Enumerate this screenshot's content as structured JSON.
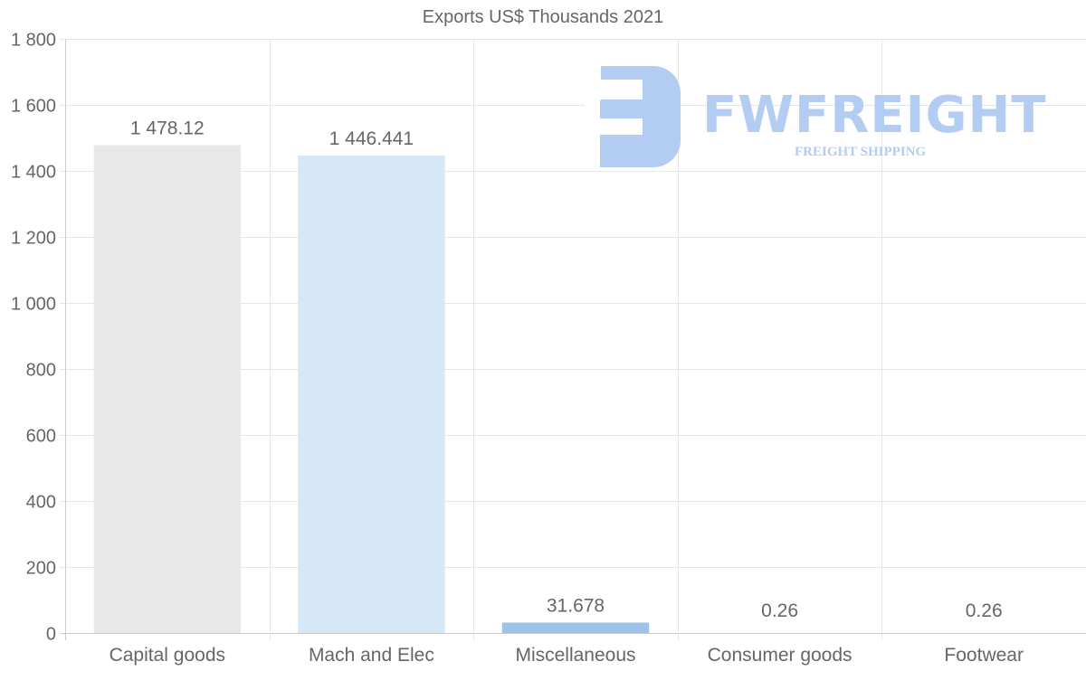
{
  "chart_data": {
    "type": "bar",
    "title": "Exports US$ Thousands 2021",
    "categories": [
      "Capital goods",
      "Mach and Elec",
      "Miscellaneous",
      "Consumer goods",
      "Footwear"
    ],
    "values": [
      1478.12,
      1446.441,
      31.678,
      0.26,
      0.26
    ],
    "value_labels": [
      "1 478.12",
      "1 446.441",
      "31.678",
      "0.26",
      "0.26"
    ],
    "colors": [
      "#e8e8e8",
      "#d6e7f8",
      "#9cc2e8",
      "#c5d9ef",
      "#c5d9ef"
    ],
    "ylim": [
      0,
      1800
    ],
    "yticks": [
      0,
      200,
      400,
      600,
      800,
      1000,
      1200,
      1400,
      1600,
      1800
    ],
    "ytick_labels": [
      "0",
      "200",
      "400",
      "600",
      "800",
      "1 000",
      "1 200",
      "1 400",
      "1 600",
      "1 800"
    ],
    "xlabel": "",
    "ylabel": "",
    "grid": true
  },
  "watermark": {
    "brand": "FWFREIGHT",
    "tagline": "FREIGHT SHIPPING"
  }
}
